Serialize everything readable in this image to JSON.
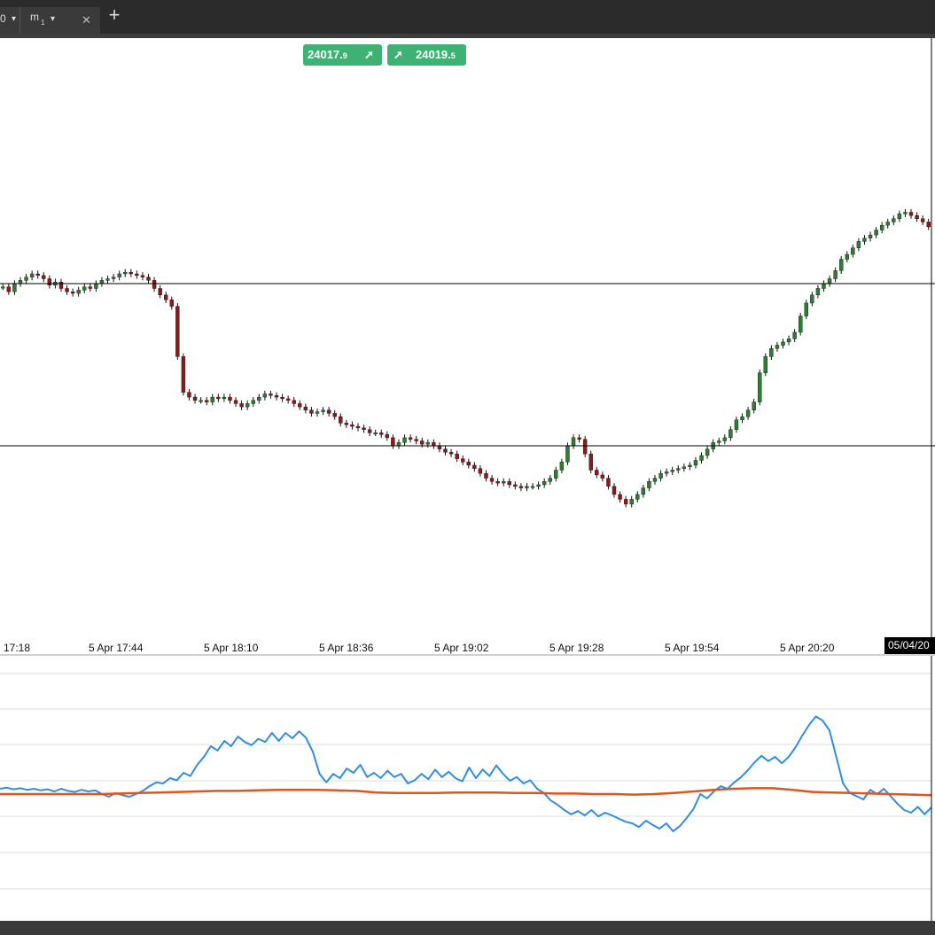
{
  "tabs": {
    "prev_tab_label": "0",
    "prev_tab_dropdown": "▾",
    "active_tab_label": "m",
    "active_tab_subscript": "1",
    "active_tab_dropdown": "▾",
    "close_symbol": "✕",
    "new_tab_symbol": "+"
  },
  "quotes": {
    "sell_main": "24017.",
    "sell_small": "9",
    "buy_main": "24019.",
    "buy_small": "5",
    "arrow": "➚",
    "color": "#3db272"
  },
  "time_axis": {
    "labels": [
      "17:18",
      "5 Apr 17:44",
      "5 Apr 18:10",
      "5 Apr 18:36",
      "5 Apr 19:02",
      "5 Apr 19:28",
      "5 Apr 19:54",
      "5 Apr 20:20"
    ],
    "crosshair_label": "05/04/20"
  },
  "chart_data": [
    {
      "type": "candlestick",
      "title": "",
      "up_color": "#2e7d32",
      "down_color": "#8b1a1a",
      "horizontal_levels_relative": [
        0.0,
        1.0
      ],
      "close_profile": [
        0.98,
        0.95,
        1.0,
        1.02,
        1.04,
        1.06,
        1.05,
        1.03,
        0.99,
        1.01,
        0.97,
        0.95,
        0.94,
        0.96,
        0.98,
        0.97,
        1.0,
        1.02,
        1.03,
        1.04,
        1.06,
        1.07,
        1.06,
        1.05,
        1.04,
        1.02,
        0.97,
        0.93,
        0.9,
        0.86,
        0.55,
        0.33,
        0.3,
        0.28,
        0.28,
        0.27,
        0.3,
        0.29,
        0.3,
        0.28,
        0.26,
        0.24,
        0.26,
        0.28,
        0.3,
        0.32,
        0.31,
        0.3,
        0.29,
        0.28,
        0.26,
        0.24,
        0.22,
        0.2,
        0.21,
        0.22,
        0.2,
        0.18,
        0.14,
        0.13,
        0.12,
        0.11,
        0.1,
        0.08,
        0.08,
        0.07,
        0.05,
        0.0,
        0.02,
        0.05,
        0.04,
        0.03,
        0.01,
        0.02,
        0.0,
        -0.02,
        -0.04,
        -0.05,
        -0.08,
        -0.1,
        -0.12,
        -0.14,
        -0.17,
        -0.2,
        -0.22,
        -0.23,
        -0.22,
        -0.24,
        -0.25,
        -0.26,
        -0.25,
        -0.25,
        -0.24,
        -0.22,
        -0.2,
        -0.15,
        -0.1,
        0.0,
        0.05,
        0.04,
        -0.05,
        -0.15,
        -0.18,
        -0.2,
        -0.25,
        -0.3,
        -0.33,
        -0.36,
        -0.33,
        -0.3,
        -0.26,
        -0.22,
        -0.2,
        -0.17,
        -0.16,
        -0.15,
        -0.14,
        -0.13,
        -0.12,
        -0.09,
        -0.06,
        -0.02,
        0.02,
        0.03,
        0.05,
        0.1,
        0.16,
        0.18,
        0.22,
        0.27,
        0.45,
        0.55,
        0.6,
        0.62,
        0.64,
        0.66,
        0.7,
        0.8,
        0.88,
        0.93,
        0.97,
        1.0,
        1.03,
        1.08,
        1.15,
        1.18,
        1.22,
        1.26,
        1.28,
        1.3,
        1.33,
        1.36,
        1.38,
        1.4,
        1.43,
        1.44,
        1.42,
        1.4,
        1.38,
        1.35
      ]
    },
    {
      "type": "line",
      "title": "",
      "series": [
        {
          "color": "#2f8de4",
          "values": [
            0.5,
            0.52,
            0.49,
            0.51,
            0.48,
            0.5,
            0.47,
            0.49,
            0.45,
            0.5,
            0.46,
            0.44,
            0.48,
            0.45,
            0.47,
            0.4,
            0.35,
            0.42,
            0.38,
            0.35,
            0.4,
            0.46,
            0.55,
            0.62,
            0.6,
            0.7,
            0.66,
            0.8,
            0.74,
            0.95,
            1.1,
            1.3,
            1.22,
            1.4,
            1.3,
            1.48,
            1.38,
            1.32,
            1.44,
            1.38,
            1.55,
            1.4,
            1.55,
            1.45,
            1.58,
            1.46,
            1.2,
            0.78,
            0.62,
            0.78,
            0.7,
            0.88,
            0.8,
            0.95,
            0.72,
            0.8,
            0.7,
            0.84,
            0.72,
            0.78,
            0.6,
            0.66,
            0.78,
            0.68,
            0.86,
            0.72,
            0.82,
            0.7,
            0.64,
            0.9,
            0.7,
            0.86,
            0.74,
            0.94,
            0.78,
            0.65,
            0.72,
            0.6,
            0.66,
            0.5,
            0.42,
            0.28,
            0.2,
            0.1,
            0.02,
            0.08,
            0.0,
            0.1,
            -0.02,
            0.05,
            0.0,
            -0.06,
            -0.12,
            -0.15,
            -0.22,
            -0.1,
            -0.18,
            -0.25,
            -0.15,
            -0.3,
            -0.2,
            -0.05,
            0.12,
            0.4,
            0.32,
            0.45,
            0.55,
            0.5,
            0.62,
            0.72,
            0.85,
            1.0,
            1.12,
            1.02,
            1.1,
            0.98,
            1.1,
            1.28,
            1.5,
            1.7,
            1.86,
            1.78,
            1.6,
            1.1,
            0.6,
            0.42,
            0.36,
            0.3,
            0.48,
            0.4,
            0.5,
            0.36,
            0.22,
            0.1,
            0.05,
            0.16,
            0.02,
            0.15
          ]
        },
        {
          "color": "#e0541e",
          "values": [
            0.4,
            0.4,
            0.4,
            0.4,
            0.4,
            0.4,
            0.41,
            0.42,
            0.43,
            0.44,
            0.45,
            0.46,
            0.46,
            0.47,
            0.48,
            0.48,
            0.48,
            0.47,
            0.46,
            0.43,
            0.42,
            0.42,
            0.42,
            0.43,
            0.43,
            0.43,
            0.42,
            0.42,
            0.41,
            0.41,
            0.4,
            0.4,
            0.39,
            0.4,
            0.42,
            0.45,
            0.48,
            0.5,
            0.51,
            0.51,
            0.48,
            0.44,
            0.43,
            0.42,
            0.41,
            0.4,
            0.39,
            0.38
          ]
        }
      ]
    }
  ]
}
